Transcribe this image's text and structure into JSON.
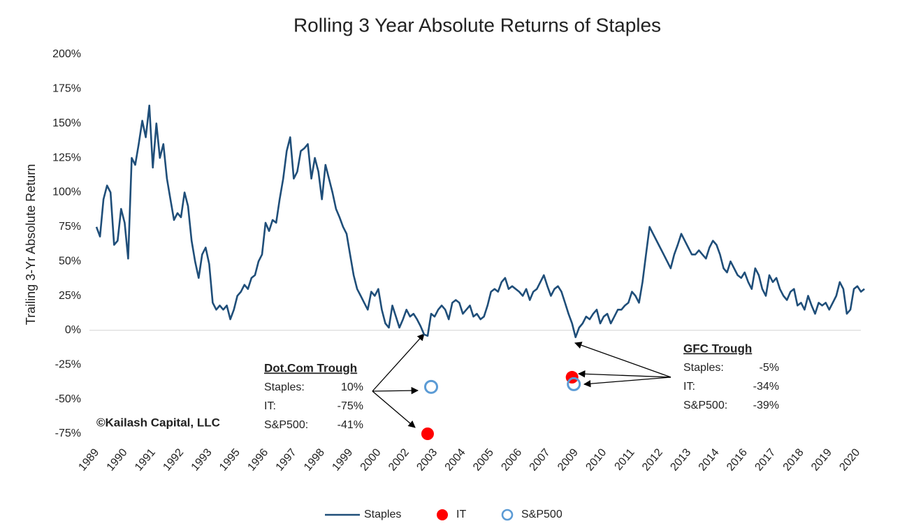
{
  "chart_data": {
    "type": "line",
    "title": "Rolling 3 Year Absolute Returns of Staples",
    "y_label": "Trailing 3-Yr Absolute Return",
    "source": "©Kailash Capital, LLC",
    "xlim": [
      0,
      220
    ],
    "xticks": [
      {
        "value": 0,
        "label": "1989"
      },
      {
        "value": 8,
        "label": "1990"
      },
      {
        "value": 16,
        "label": "1991"
      },
      {
        "value": 24,
        "label": "1992"
      },
      {
        "value": 32,
        "label": "1993"
      },
      {
        "value": 40,
        "label": "1995"
      },
      {
        "value": 48,
        "label": "1996"
      },
      {
        "value": 56,
        "label": "1997"
      },
      {
        "value": 64,
        "label": "1998"
      },
      {
        "value": 72,
        "label": "1999"
      },
      {
        "value": 80,
        "label": "2000"
      },
      {
        "value": 88,
        "label": "2002"
      },
      {
        "value": 96,
        "label": "2003"
      },
      {
        "value": 104,
        "label": "2004"
      },
      {
        "value": 112,
        "label": "2005"
      },
      {
        "value": 120,
        "label": "2006"
      },
      {
        "value": 128,
        "label": "2007"
      },
      {
        "value": 136,
        "label": "2009"
      },
      {
        "value": 144,
        "label": "2010"
      },
      {
        "value": 152,
        "label": "2011"
      },
      {
        "value": 160,
        "label": "2012"
      },
      {
        "value": 168,
        "label": "2013"
      },
      {
        "value": 176,
        "label": "2014"
      },
      {
        "value": 184,
        "label": "2016"
      },
      {
        "value": 192,
        "label": "2017"
      },
      {
        "value": 200,
        "label": "2018"
      },
      {
        "value": 208,
        "label": "2019"
      },
      {
        "value": 216,
        "label": "2020"
      }
    ],
    "ylim": [
      -75,
      200
    ],
    "yticks": [
      {
        "value": -75,
        "label": "-75%"
      },
      {
        "value": -50,
        "label": "-50%"
      },
      {
        "value": -25,
        "label": "-25%"
      },
      {
        "value": 0,
        "label": "0%"
      },
      {
        "value": 25,
        "label": "25%"
      },
      {
        "value": 50,
        "label": "50%"
      },
      {
        "value": 75,
        "label": "75%"
      },
      {
        "value": 100,
        "label": "100%"
      },
      {
        "value": 125,
        "label": "125%"
      },
      {
        "value": 150,
        "label": "150%"
      },
      {
        "value": 175,
        "label": "175%"
      },
      {
        "value": 200,
        "label": "200%"
      }
    ],
    "series": [
      {
        "name": "Staples",
        "marker": "line",
        "color": "#1f4e79",
        "x": [
          1,
          2,
          3,
          4,
          5,
          6,
          7,
          8,
          9,
          10,
          11,
          12,
          13,
          14,
          15,
          16,
          17,
          18,
          19,
          20,
          21,
          22,
          23,
          24,
          25,
          26,
          27,
          28,
          29,
          30,
          31,
          32,
          33,
          34,
          35,
          36,
          37,
          38,
          39,
          40,
          41,
          42,
          43,
          44,
          45,
          46,
          47,
          48,
          49,
          50,
          51,
          52,
          53,
          54,
          55,
          56,
          57,
          58,
          59,
          60,
          61,
          62,
          63,
          64,
          65,
          66,
          67,
          68,
          69,
          70,
          71,
          72,
          73,
          74,
          75,
          76,
          77,
          78,
          79,
          80,
          81,
          82,
          83,
          84,
          85,
          86,
          87,
          88,
          89,
          90,
          91,
          92,
          93,
          94,
          95,
          96,
          97,
          98,
          99,
          100,
          101,
          102,
          103,
          104,
          105,
          106,
          107,
          108,
          109,
          110,
          111,
          112,
          113,
          114,
          115,
          116,
          117,
          118,
          119,
          120,
          121,
          122,
          123,
          124,
          125,
          126,
          127,
          128,
          129,
          130,
          131,
          132,
          133,
          134,
          135,
          136,
          137,
          138,
          139,
          140,
          141,
          142,
          143,
          144,
          145,
          146,
          147,
          148,
          149,
          150,
          151,
          152,
          153,
          154,
          155,
          156,
          157,
          158,
          159,
          160,
          161,
          162,
          163,
          164,
          165,
          166,
          167,
          168,
          169,
          170,
          171,
          172,
          173,
          174,
          175,
          176,
          177,
          178,
          179,
          180,
          181,
          182,
          183,
          184,
          185,
          186,
          187,
          188,
          189,
          190,
          191,
          192,
          193,
          194,
          195,
          196,
          197,
          198,
          199,
          200,
          201,
          202,
          203,
          204,
          205,
          206,
          207,
          208,
          209,
          210,
          211,
          212,
          213,
          214,
          215,
          216,
          217,
          218,
          219
        ],
        "values": [
          75,
          68,
          95,
          105,
          100,
          62,
          65,
          88,
          78,
          52,
          125,
          120,
          135,
          152,
          140,
          163,
          118,
          150,
          125,
          135,
          110,
          95,
          80,
          85,
          82,
          100,
          90,
          65,
          50,
          38,
          55,
          60,
          48,
          20,
          15,
          18,
          15,
          18,
          8,
          15,
          25,
          28,
          33,
          30,
          38,
          40,
          50,
          55,
          78,
          72,
          80,
          78,
          95,
          110,
          130,
          140,
          110,
          115,
          130,
          132,
          135,
          110,
          125,
          115,
          95,
          120,
          110,
          100,
          88,
          82,
          75,
          70,
          55,
          40,
          30,
          25,
          20,
          15,
          28,
          25,
          30,
          15,
          5,
          2,
          18,
          10,
          2,
          8,
          15,
          10,
          12,
          8,
          3,
          -3,
          -4,
          12,
          10,
          15,
          18,
          15,
          8,
          20,
          22,
          20,
          12,
          15,
          18,
          10,
          12,
          8,
          10,
          18,
          28,
          30,
          28,
          35,
          38,
          30,
          32,
          30,
          28,
          25,
          30,
          22,
          28,
          30,
          35,
          40,
          32,
          25,
          30,
          32,
          28,
          20,
          12,
          5,
          -5,
          2,
          5,
          10,
          8,
          12,
          15,
          5,
          10,
          12,
          5,
          10,
          15,
          15,
          18,
          20,
          28,
          25,
          20,
          35,
          55,
          75,
          70,
          65,
          60,
          55,
          50,
          45,
          55,
          62,
          70,
          65,
          60,
          55,
          55,
          58,
          55,
          52,
          60,
          65,
          62,
          55,
          45,
          42,
          50,
          45,
          40,
          38,
          42,
          35,
          30,
          45,
          40,
          30,
          25,
          40,
          35,
          38,
          30,
          25,
          22,
          28,
          30,
          18,
          20,
          15,
          25,
          18,
          12,
          20,
          18,
          20,
          15,
          20,
          25,
          35,
          30,
          12,
          15,
          30,
          32,
          28,
          30
        ]
      },
      {
        "name": "IT",
        "marker": "filled",
        "color": "#ff0000",
        "x": [
          95,
          136
        ],
        "values": [
          -75,
          -34
        ]
      },
      {
        "name": "S&P500",
        "marker": "open",
        "color": "#5b9bd5",
        "x": [
          96,
          136.5
        ],
        "values": [
          -41,
          -39
        ]
      }
    ],
    "annotations": [
      {
        "title": "Dot.Com  Trough",
        "rows": [
          [
            "Staples:",
            "10%"
          ],
          [
            "IT:",
            "-75%"
          ],
          [
            "S&P500:",
            "-41%"
          ]
        ]
      },
      {
        "title": "GFC Trough",
        "rows": [
          [
            "Staples:",
            "-5%"
          ],
          [
            "IT:",
            "-34%"
          ],
          [
            "S&P500:",
            "-39%"
          ]
        ]
      }
    ]
  }
}
